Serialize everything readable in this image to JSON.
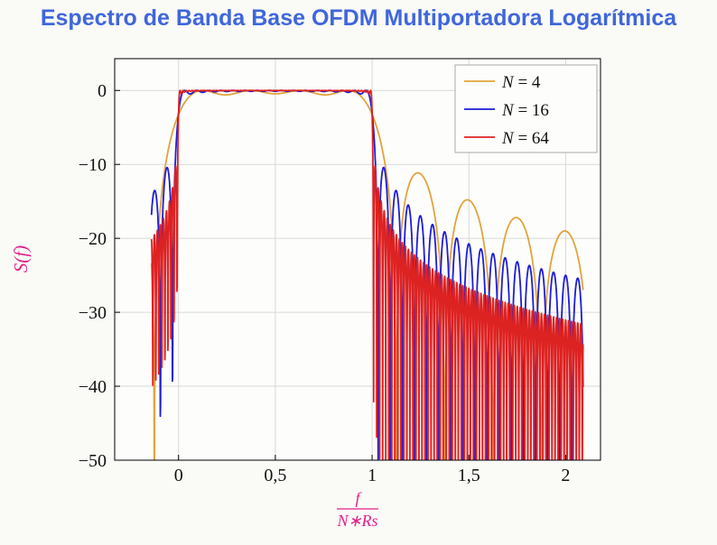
{
  "title": "Espectro de Banda Base OFDM Multiportadora Logarítmica",
  "colors": {
    "title": "#3f66db",
    "axis_label": "#e0218a",
    "frame": "#000000",
    "grid": "#d8d8d8",
    "background": "#fafaf7",
    "plot_background": "#fdfdfb",
    "legend_border": "#a9a9a9",
    "tick_text": "#111111"
  },
  "chart_data": {
    "type": "line",
    "title": "Espectro de Banda Base OFDM Multiportadora Logarítmica",
    "ylabel": "S(f)",
    "xlabel": {
      "numerator": "f",
      "denominator": "N∗Rs"
    },
    "xlim": [
      -0.33,
      2.18
    ],
    "ylim": [
      -50,
      4.3
    ],
    "x_ticks": {
      "values": [
        0,
        0.5,
        1,
        1.5,
        2
      ],
      "labels": [
        "0",
        "0,5",
        "1",
        "1,5",
        "2"
      ]
    },
    "y_ticks": {
      "values": [
        0,
        -10,
        -20,
        -30,
        -40,
        -50
      ],
      "labels": [
        "0",
        "−10",
        "−20",
        "−30",
        "−40",
        "−50"
      ]
    },
    "grid": "major",
    "legend_position": "top-right",
    "formula": "S_dB(x) = 10*log10( sum_{k=0}^{N-1} sinc^2( N*x - k - 0.5 ) ),  sinc(t)=sin(pi*t)/(pi*t),  x = f/(N*Rs); flat 0 dB passband for 0<x<1, sidelobes decaying beyond x=1 (first sidelobe about -11 dB, falling to about -19/-22/-31 dB near x=2 for N=4/16/64)",
    "sample_range": [
      -0.14,
      2.09
    ],
    "samples": 2000,
    "series": [
      {
        "name": "N = 4",
        "legend_var": "N",
        "legend_rest": " = 4",
        "N": 4,
        "color": "#e2a33d"
      },
      {
        "name": "N = 16",
        "legend_var": "N",
        "legend_rest": " = 16",
        "N": 16,
        "color": "#1c1cd8"
      },
      {
        "name": "N = 64",
        "legend_var": "N",
        "legend_rest": " = 64",
        "N": 64,
        "color": "#dd2222"
      }
    ]
  }
}
